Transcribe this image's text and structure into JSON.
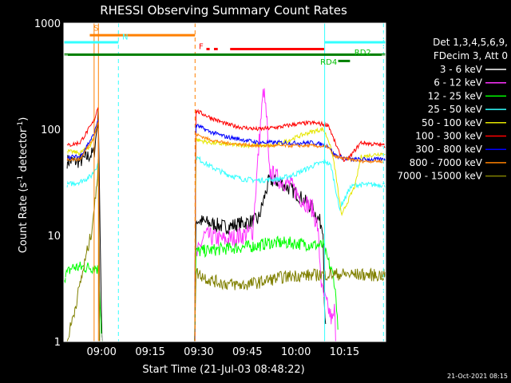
{
  "chart_data": {
    "type": "line",
    "title": "RHESSI Observing Summary Count Rates",
    "xlabel": "Start Time (21-Jul-03 08:48:22)",
    "ylabel_main": "Count Rate (s",
    "ylabel_sup1": "-1",
    "ylabel_mid": " detector",
    "ylabel_sup2": "-1",
    "ylabel_end": ")",
    "yscale": "log",
    "ylim": [
      1,
      1000
    ],
    "xlim": [
      0,
      5960
    ],
    "y_ticks": [
      {
        "value": 1,
        "label": "1"
      },
      {
        "value": 10,
        "label": "10"
      },
      {
        "value": 100,
        "label": "100"
      },
      {
        "value": 1000,
        "label": "1000"
      }
    ],
    "x_ticks": [
      {
        "value": 698,
        "label": "09:00"
      },
      {
        "value": 1598,
        "label": "09:15"
      },
      {
        "value": 2498,
        "label": "09:30"
      },
      {
        "value": 3398,
        "label": "09:45"
      },
      {
        "value": 4298,
        "label": "10:00"
      },
      {
        "value": 5198,
        "label": "10:15"
      }
    ],
    "legend": {
      "header1": "Det 1,3,4,5,6,9,",
      "header2": "FDecim 3, Att 0",
      "entries": [
        {
          "label": "3 - 6 keV",
          "color": "#ffffff"
        },
        {
          "label": "6 - 12 keV",
          "color": "#ff33ff"
        },
        {
          "label": "12 - 25 keV",
          "color": "#00ff00"
        },
        {
          "label": "25 - 50 keV",
          "color": "#33ffff"
        },
        {
          "label": "50 - 100 keV",
          "color": "#e6e600"
        },
        {
          "label": "100 - 300 keV",
          "color": "#ff0000"
        },
        {
          "label": "300 - 800 keV",
          "color": "#0000ff"
        },
        {
          "label": "800 - 7000 keV",
          "color": "#ff8000"
        },
        {
          "label": "7000 - 15000 keV",
          "color": "#808000"
        }
      ]
    },
    "series": [
      {
        "name": "3 - 6 keV",
        "color": "#000000",
        "x": [
          60,
          300,
          560,
          620,
          640,
          700,
          2430,
          2440,
          2700,
          3000,
          3300,
          3600,
          3800,
          4000,
          4300,
          4600,
          4800,
          4820,
          4850
        ],
        "y": [
          50,
          50,
          60,
          110,
          150,
          1,
          1,
          14,
          13,
          12,
          13,
          14,
          33,
          32,
          25,
          18,
          12,
          3,
          1.2
        ],
        "noise": 0.14
      },
      {
        "name": "6 - 12 keV",
        "color": "#ff33ff",
        "x": [
          2430,
          2440,
          2600,
          3000,
          3300,
          3500,
          3640,
          3700,
          3760,
          3800,
          4000,
          4200,
          4400,
          4600,
          4700,
          4780,
          4900,
          4980,
          5010,
          5040
        ],
        "y": [
          1,
          6,
          10,
          9,
          10,
          11,
          110,
          240,
          120,
          40,
          33,
          30,
          22,
          18,
          12,
          3,
          2,
          1.5,
          2,
          1
        ],
        "noise": 0.18
      },
      {
        "name": "12 - 25 keV",
        "color": "#00ff00",
        "x": [
          0,
          150,
          400,
          600,
          650,
          700,
          2430,
          2440,
          3000,
          3600,
          3800,
          4200,
          4800,
          4880,
          5000,
          5060,
          5080
        ],
        "y": [
          4,
          5,
          5,
          5,
          4.5,
          1,
          1,
          7,
          7.5,
          8,
          8.5,
          8.5,
          8,
          6,
          4,
          2,
          1
        ],
        "noise": 0.12
      },
      {
        "name": "25 - 50 keV",
        "color": "#33ffff",
        "x": [
          60,
          300,
          500,
          640,
          660,
          2430,
          2440,
          2700,
          3000,
          3300,
          3600,
          4000,
          4300,
          4600,
          4850,
          4950,
          5050,
          5100,
          5200,
          5300,
          5400,
          5500,
          5960
        ],
        "y": [
          30,
          32,
          36,
          48,
          1,
          1,
          55,
          45,
          38,
          34,
          33,
          34,
          38,
          45,
          50,
          45,
          25,
          18,
          22,
          28,
          30,
          30,
          30
        ],
        "noise": 0.05
      },
      {
        "name": "50 - 100 keV",
        "color": "#e6e600",
        "x": [
          60,
          300,
          500,
          640,
          660,
          2430,
          2440,
          2700,
          3000,
          3500,
          3900,
          4200,
          4400,
          4600,
          4800,
          4900,
          5000,
          5100,
          5150,
          5200,
          5400,
          5500,
          5960
        ],
        "y": [
          62,
          60,
          70,
          120,
          1,
          1,
          80,
          75,
          72,
          70,
          70,
          80,
          88,
          95,
          100,
          80,
          50,
          22,
          15,
          18,
          30,
          55,
          60
        ],
        "noise": 0.04
      },
      {
        "name": "100 - 300 keV",
        "color": "#ff0000",
        "x": [
          60,
          300,
          560,
          640,
          660,
          2430,
          2440,
          2700,
          3000,
          3300,
          3600,
          4000,
          4300,
          4600,
          4900,
          5000,
          5100,
          5200,
          5300,
          5500,
          5960
        ],
        "y": [
          70,
          75,
          120,
          170,
          1,
          1,
          150,
          130,
          112,
          104,
          100,
          105,
          112,
          115,
          110,
          80,
          60,
          50,
          55,
          75,
          70
        ],
        "noise": 0.04
      },
      {
        "name": "300 - 800 keV",
        "color": "#0000ff",
        "x": [
          60,
          300,
          560,
          640,
          660,
          2430,
          2440,
          2700,
          3000,
          3300,
          3600,
          4000,
          4300,
          4600,
          4900,
          5000,
          5100,
          5300,
          5500,
          5960
        ],
        "y": [
          55,
          55,
          90,
          130,
          1,
          1,
          110,
          95,
          85,
          80,
          75,
          75,
          74,
          75,
          70,
          58,
          55,
          52,
          52,
          52
        ],
        "noise": 0.04
      },
      {
        "name": "800 - 7000 keV",
        "color": "#ff8000",
        "x": [
          60,
          300,
          560,
          640,
          660,
          2430,
          2440,
          2700,
          3000,
          3300,
          3600,
          4000,
          4300,
          4600,
          4900,
          5000,
          5100,
          5300,
          5500,
          5960
        ],
        "y": [
          52,
          52,
          85,
          120,
          1,
          1,
          90,
          80,
          74,
          72,
          70,
          70,
          70,
          70,
          68,
          56,
          54,
          52,
          50,
          50
        ],
        "noise": 0.03
      },
      {
        "name": "7000 - 15000 keV",
        "color": "#808000",
        "x": [
          60,
          200,
          400,
          500,
          560,
          600,
          620,
          640,
          660,
          2430,
          2440,
          2700,
          3000,
          3300,
          3600,
          3800,
          4000,
          4300,
          4600,
          4800,
          5000,
          5200,
          5960
        ],
        "y": [
          1,
          2,
          6,
          10,
          18,
          25,
          35,
          60,
          1,
          1,
          4.5,
          3.8,
          3.5,
          3.4,
          3.6,
          3.8,
          4,
          4.2,
          4.2,
          4.3,
          4.3,
          4.3,
          4.2
        ],
        "noise": 0.12
      }
    ],
    "annotations": [
      {
        "text": "S",
        "x": 550,
        "y": 850,
        "color": "#ff8000"
      },
      {
        "text": "N",
        "x": 1080,
        "y": 700,
        "color": "#33ffff"
      },
      {
        "text": "F",
        "x": 2500,
        "y": 570,
        "color": "#ff0000"
      },
      {
        "text": "RD2",
        "x": 5380,
        "y": 500,
        "color": "#00c000"
      },
      {
        "text": "RD4",
        "x": 4750,
        "y": 405,
        "color": "#00c000"
      }
    ],
    "bars": [
      {
        "name": "saa",
        "x1": 480,
        "x2": 2430,
        "y": 770,
        "color": "#ff8000"
      },
      {
        "name": "night-left",
        "x1": 0,
        "x2": 1010,
        "y": 660,
        "color": "#33ffff"
      },
      {
        "name": "night-right",
        "x1": 4830,
        "x2": 5960,
        "y": 660,
        "color": "#33ffff"
      },
      {
        "name": "flare-a",
        "x1": 2640,
        "x2": 2700,
        "y": 570,
        "color": "#ff0000"
      },
      {
        "name": "flare-b",
        "x1": 2780,
        "x2": 2850,
        "y": 570,
        "color": "#ff0000"
      },
      {
        "name": "flare-c",
        "x1": 3080,
        "x2": 4820,
        "y": 570,
        "color": "#ff0000"
      },
      {
        "name": "decim",
        "x1": 0,
        "x2": 5960,
        "y": 505,
        "color": "#008000"
      },
      {
        "name": "rd4",
        "x1": 5080,
        "x2": 5300,
        "y": 440,
        "color": "#008000"
      }
    ],
    "vlines": [
      {
        "x": 0,
        "color": "#33ffff",
        "style": "solid"
      },
      {
        "x": 560,
        "color": "#ff8000",
        "style": "solid"
      },
      {
        "x": 640,
        "color": "#ff8000",
        "style": "solid"
      },
      {
        "x": 1010,
        "color": "#33ffff",
        "style": "dash"
      },
      {
        "x": 2430,
        "color": "#ff8000",
        "style": "dash"
      },
      {
        "x": 4830,
        "color": "#33ffff",
        "style": "solid"
      },
      {
        "x": 5920,
        "color": "#33ffff",
        "style": "dash"
      }
    ],
    "footer_date": "21-Oct-2021 08:15"
  }
}
